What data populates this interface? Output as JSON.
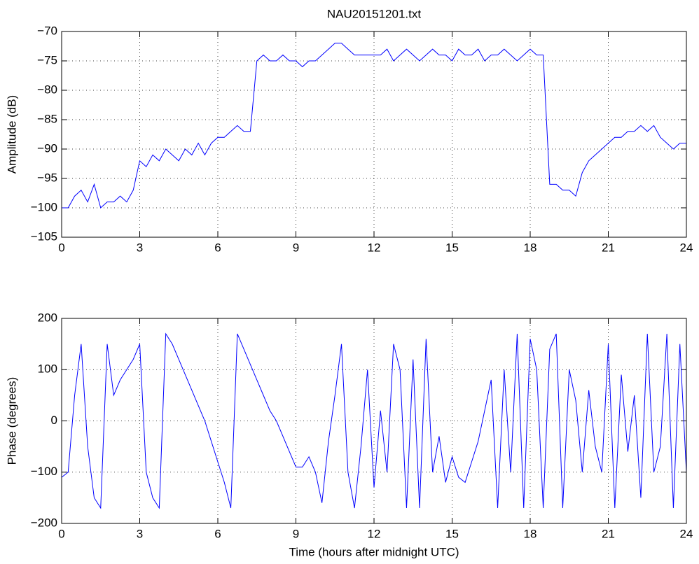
{
  "chart_data": [
    {
      "type": "line",
      "title": "NAU20151201.txt",
      "ylabel": "Amplitude (dB)",
      "xlim": [
        0,
        24
      ],
      "xticks": [
        0,
        3,
        6,
        9,
        12,
        15,
        18,
        21,
        24
      ],
      "ylim": [
        -105,
        -70
      ],
      "yticks": [
        {
          "value": -105,
          "label": "−105"
        },
        {
          "value": -100,
          "label": "−100"
        },
        {
          "value": -95,
          "label": "−95"
        },
        {
          "value": -90,
          "label": "−90"
        },
        {
          "value": -85,
          "label": "−85"
        },
        {
          "value": -80,
          "label": "−80"
        },
        {
          "value": -75,
          "label": "−75"
        },
        {
          "value": -70,
          "label": "−70"
        }
      ],
      "grid": true,
      "x": [
        0,
        0.25,
        0.5,
        0.75,
        1,
        1.25,
        1.5,
        1.75,
        2,
        2.25,
        2.5,
        2.75,
        3,
        3.25,
        3.5,
        3.75,
        4,
        4.25,
        4.5,
        4.75,
        5,
        5.25,
        5.5,
        5.75,
        6,
        6.25,
        6.5,
        6.75,
        7,
        7.25,
        7.5,
        7.75,
        8,
        8.25,
        8.5,
        8.75,
        9,
        9.25,
        9.5,
        9.75,
        10,
        10.25,
        10.5,
        10.75,
        11,
        11.25,
        11.5,
        11.75,
        12,
        12.25,
        12.5,
        12.75,
        13,
        13.25,
        13.5,
        13.75,
        14,
        14.25,
        14.5,
        14.75,
        15,
        15.25,
        15.5,
        15.75,
        16,
        16.25,
        16.5,
        16.75,
        17,
        17.25,
        17.5,
        17.75,
        18,
        18.25,
        18.5,
        18.75,
        19,
        19.25,
        19.5,
        19.75,
        20,
        20.25,
        20.5,
        20.75,
        21,
        21.25,
        21.5,
        21.75,
        22,
        22.25,
        22.5,
        22.75,
        23,
        23.25,
        23.5,
        23.75,
        24
      ],
      "series": [
        {
          "color": "#0000ff",
          "values": [
            -100,
            -100,
            -98,
            -97,
            -99,
            -96,
            -100,
            -99,
            -99,
            -98,
            -99,
            -97,
            -92,
            -93,
            -91,
            -92,
            -90,
            -91,
            -92,
            -90,
            -91,
            -89,
            -91,
            -89,
            -88,
            -88,
            -87,
            -86,
            -87,
            -87,
            -75,
            -74,
            -75,
            -75,
            -74,
            -75,
            -75,
            -76,
            -75,
            -75,
            -74,
            -73,
            -72,
            -72,
            -73,
            -74,
            -74,
            -74,
            -74,
            -74,
            -73,
            -75,
            -74,
            -73,
            -74,
            -75,
            -74,
            -73,
            -74,
            -74,
            -75,
            -73,
            -74,
            -74,
            -73,
            -75,
            -74,
            -74,
            -73,
            -74,
            -75,
            -74,
            -73,
            -74,
            -74,
            -96,
            -96,
            -97,
            -97,
            -98,
            -94,
            -92,
            -91,
            -90,
            -89,
            -88,
            -88,
            -87,
            -87,
            -86,
            -87,
            -86,
            -88,
            -89,
            -90,
            -89,
            -89
          ]
        }
      ]
    },
    {
      "type": "line",
      "xlabel": "Time (hours after midnight UTC)",
      "ylabel": "Phase (degrees)",
      "xlim": [
        0,
        24
      ],
      "xticks": [
        0,
        3,
        6,
        9,
        12,
        15,
        18,
        21,
        24
      ],
      "ylim": [
        -200,
        200
      ],
      "yticks": [
        {
          "value": -200,
          "label": "−200"
        },
        {
          "value": -100,
          "label": "−100"
        },
        0,
        100,
        200
      ],
      "grid": true,
      "x": [
        0,
        0.25,
        0.5,
        0.75,
        1,
        1.25,
        1.5,
        1.75,
        2,
        2.25,
        2.5,
        2.75,
        3,
        3.25,
        3.5,
        3.75,
        4,
        4.25,
        4.5,
        4.75,
        5,
        5.25,
        5.5,
        5.75,
        6,
        6.25,
        6.5,
        6.75,
        7,
        7.25,
        7.5,
        7.75,
        8,
        8.25,
        8.5,
        8.75,
        9,
        9.25,
        9.5,
        9.75,
        10,
        10.25,
        10.5,
        10.75,
        11,
        11.25,
        11.5,
        11.75,
        12,
        12.25,
        12.5,
        12.75,
        13,
        13.25,
        13.5,
        13.75,
        14,
        14.25,
        14.5,
        14.75,
        15,
        15.25,
        15.5,
        15.75,
        16,
        16.25,
        16.5,
        16.75,
        17,
        17.25,
        17.5,
        17.75,
        18,
        18.25,
        18.5,
        18.75,
        19,
        19.25,
        19.5,
        19.75,
        20,
        20.25,
        20.5,
        20.75,
        21,
        21.25,
        21.5,
        21.75,
        22,
        22.25,
        22.5,
        22.75,
        23,
        23.25,
        23.5,
        23.75,
        24
      ],
      "series": [
        {
          "color": "#0000ff",
          "values": [
            -110,
            -100,
            50,
            150,
            -50,
            -150,
            -170,
            150,
            50,
            80,
            100,
            120,
            150,
            -100,
            -150,
            -170,
            170,
            150,
            120,
            90,
            60,
            30,
            0,
            -40,
            -80,
            -120,
            -170,
            170,
            140,
            110,
            80,
            50,
            20,
            0,
            -30,
            -60,
            -90,
            -90,
            -70,
            -100,
            -160,
            -40,
            50,
            150,
            -100,
            -170,
            -50,
            100,
            -130,
            20,
            -100,
            150,
            100,
            -170,
            120,
            -170,
            160,
            -100,
            -30,
            -120,
            -70,
            -110,
            -120,
            -80,
            -40,
            20,
            80,
            -170,
            100,
            -100,
            170,
            -170,
            160,
            100,
            -170,
            140,
            170,
            -170,
            100,
            40,
            -100,
            60,
            -50,
            -100,
            150,
            -170,
            90,
            -60,
            50,
            -150,
            170,
            -100,
            -50,
            170,
            -170,
            150,
            -100
          ]
        }
      ]
    }
  ]
}
